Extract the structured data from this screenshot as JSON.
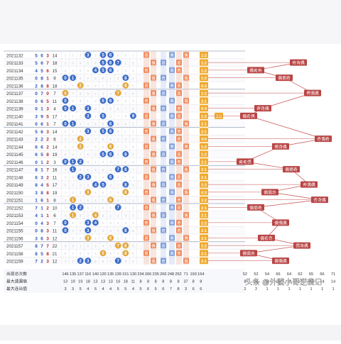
{
  "chart_data": {
    "type": "table",
    "periods": [
      "2021132",
      "2021133",
      "2021134",
      "2021135",
      "2021136",
      "2021137",
      "2021138",
      "2021139",
      "2021140",
      "2021141",
      "2021142",
      "2021143",
      "2021144",
      "2021145",
      "2021146",
      "2021147",
      "2021148",
      "2021149",
      "2021150",
      "2021151",
      "2021152",
      "2021153",
      "2021154",
      "2021155",
      "2021156",
      "2021157",
      "2021158",
      "2021159"
    ],
    "draws": [
      [
        5,
        6,
        3
      ],
      [
        5,
        6,
        7
      ],
      [
        4,
        5,
        6
      ],
      [
        0,
        8,
        1
      ],
      [
        2,
        8,
        8
      ],
      [
        0,
        7,
        0
      ],
      [
        0,
        6,
        5
      ],
      [
        0,
        1,
        3
      ],
      [
        3,
        9,
        5
      ],
      [
        0,
        6,
        1
      ],
      [
        5,
        6,
        3
      ],
      [
        2,
        2,
        2
      ],
      [
        6,
        6,
        2
      ],
      [
        6,
        5,
        8
      ],
      [
        0,
        1,
        2
      ],
      [
        8,
        1,
        7
      ],
      [
        6,
        3,
        2
      ],
      [
        8,
        4,
        5
      ],
      [
        3,
        8,
        8
      ],
      [
        1,
        6,
        1
      ],
      [
        7,
        1,
        2
      ],
      [
        4,
        1,
        1
      ],
      [
        0,
        4,
        3
      ],
      [
        0,
        8,
        3
      ],
      [
        3,
        6,
        3
      ],
      [
        8,
        7,
        7
      ],
      [
        8,
        5,
        8
      ],
      [
        7,
        2,
        3
      ]
    ],
    "sums": [
      14,
      18,
      15,
      9,
      18,
      7,
      11,
      4,
      17,
      7,
      14,
      6,
      14,
      19,
      3,
      16,
      11,
      17,
      19,
      8,
      10,
      6,
      7,
      11,
      12,
      22,
      21,
      12
    ],
    "balls": [
      [
        5,
        6,
        3
      ],
      [
        5,
        6,
        7
      ],
      [
        4,
        5,
        6
      ],
      [
        0,
        8,
        1
      ],
      [
        2,
        8
      ],
      [
        0,
        7
      ],
      [
        0,
        6,
        5
      ],
      [
        0,
        1,
        3
      ],
      [
        3,
        9,
        5
      ],
      [
        0,
        6,
        1
      ],
      [
        5,
        6,
        3
      ],
      [
        2
      ],
      [
        6,
        2
      ],
      [
        6,
        5,
        8
      ],
      [
        0,
        1,
        2
      ],
      [
        8,
        1,
        7
      ],
      [
        6,
        3,
        2
      ],
      [
        8,
        4,
        5
      ],
      [
        3,
        8
      ],
      [
        1,
        6
      ],
      [
        7,
        1,
        2
      ],
      [
        4,
        1
      ],
      [
        0,
        4,
        3
      ],
      [
        0,
        8,
        3
      ],
      [
        3,
        6
      ],
      [
        8,
        7
      ],
      [
        8,
        5
      ],
      [
        7,
        2,
        3
      ]
    ],
    "ball_colors": {
      "odd": "#3b6cc9",
      "even": "#3b6cc9",
      "repeat": "#e3a63a",
      "triple": "#e3a63a",
      "purple": "#a54fc9"
    },
    "ratios": [
      "1:2",
      "1:2",
      "1:2",
      "1:2",
      "0:3",
      "1:2",
      "2:1",
      "0:3",
      "1:2",
      "2:1",
      "2:1",
      "3:0",
      "1:2",
      "1:2",
      "2:1",
      "2:1",
      "2:1",
      "1:2",
      "0:3",
      "1:2",
      "2:1",
      "2:1",
      "1:2",
      "2:1",
      "2:1",
      "1:2",
      "2:1",
      "2:1"
    ],
    "special_ratio": "3:0",
    "patterns": [
      {
        "label": "奇奇偶",
        "row": 1
      },
      {
        "label": "偶奇奇",
        "row": 2
      },
      {
        "label": "偶偶奇",
        "row": 3
      },
      {
        "label": "偶偶偶",
        "row": 5
      },
      {
        "label": "奇奇偶",
        "row": 7
      },
      {
        "label": "偶奇偶",
        "row": 8
      },
      {
        "label": "奇偶奇",
        "row": 11
      },
      {
        "label": "偶奇偶",
        "row": 12
      },
      {
        "label": "奇奇偶",
        "row": 14
      },
      {
        "label": "偶偶奇",
        "row": 15
      },
      {
        "label": "奇偶偶",
        "row": 17
      },
      {
        "label": "偶偶奇",
        "row": 18
      },
      {
        "label": "奇奇偶",
        "row": 19
      },
      {
        "label": "偶偶奇",
        "row": 20
      },
      {
        "label": "偶偶偶",
        "row": 22
      },
      {
        "label": "偶奇奇",
        "row": 24
      },
      {
        "label": "偶奇偶",
        "row": 25
      },
      {
        "label": "偶偶奇",
        "row": 26
      },
      {
        "label": "偶偶偶",
        "row": 27
      }
    ],
    "stats": {
      "labels": [
        "出现总次数",
        "最大遗漏值",
        "最大连出值"
      ],
      "row1": [
        "146",
        "135",
        "137",
        "116",
        "140",
        "120",
        "135",
        "139",
        "151",
        "130",
        "234",
        "266",
        "235",
        "266",
        "248",
        "252",
        "71",
        "193",
        "164",
        "52",
        "52",
        "54",
        "66",
        "64",
        "62",
        "65",
        "66",
        "71"
      ],
      "row2": [
        "13",
        "19",
        "19",
        "18",
        "13",
        "13",
        "13",
        "16",
        "18",
        "11",
        "8",
        "8",
        "8",
        "8",
        "8",
        "8",
        "37",
        "8",
        "8",
        "8",
        "14",
        "16",
        "15",
        "18",
        "17",
        "14",
        "14",
        "14"
      ],
      "row3": [
        "3",
        "3",
        "5",
        "4",
        "5",
        "4",
        "4",
        "5",
        "5",
        "4",
        "5",
        "6",
        "5",
        "6",
        "7",
        "8",
        "3",
        "6",
        "6",
        "2",
        "2",
        "1",
        "1",
        "1",
        "1",
        "1",
        "1",
        "1"
      ]
    },
    "watermark": "头条 @外婆小哥逆袭记"
  }
}
